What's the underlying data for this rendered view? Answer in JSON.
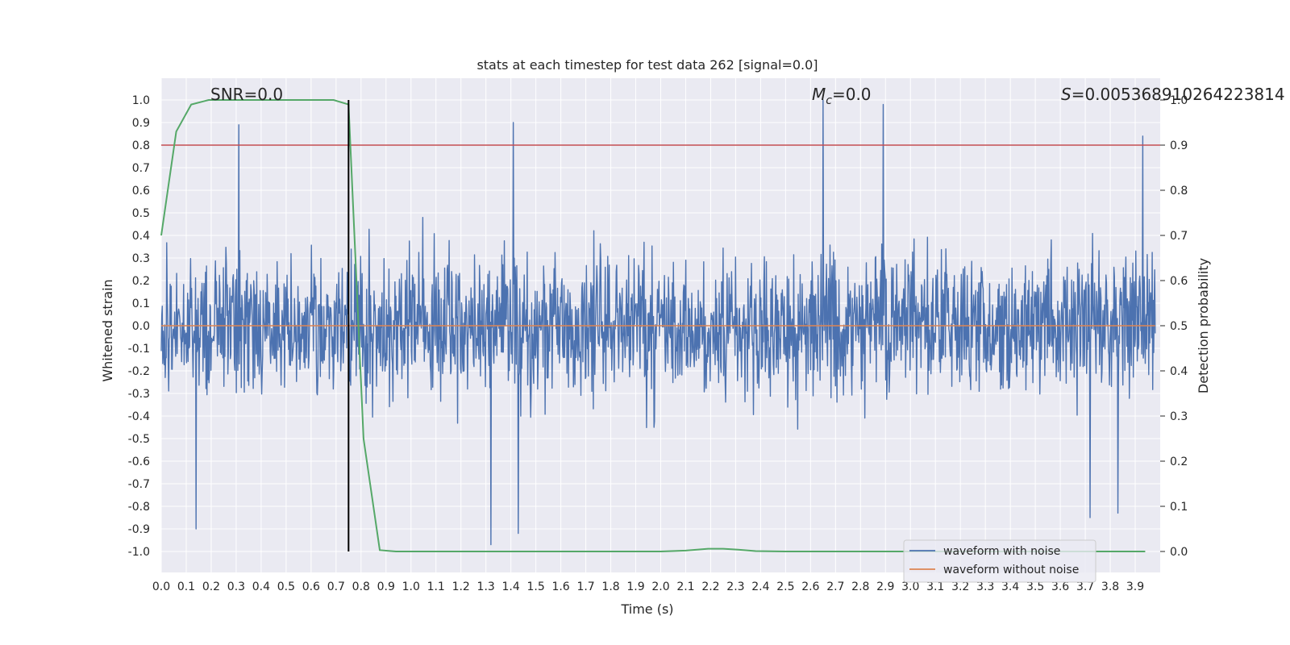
{
  "chart_data": {
    "type": "line",
    "title": "stats at each timestep for test data 262 [signal=0.0]",
    "xlabel": "Time (s)",
    "ylabel": "Whitened strain",
    "ylabel_right": "Detection probability",
    "xlim": [
      0.0,
      4.0
    ],
    "ylim": [
      -1.1,
      1.1
    ],
    "ylim_right": [
      -0.05,
      1.05
    ],
    "x_ticks": [
      "0.0",
      "0.1",
      "0.2",
      "0.3",
      "0.4",
      "0.5",
      "0.6",
      "0.7",
      "0.8",
      "0.9",
      "1.0",
      "1.1",
      "1.2",
      "1.3",
      "1.4",
      "1.5",
      "1.6",
      "1.7",
      "1.8",
      "1.9",
      "2.0",
      "2.1",
      "2.2",
      "2.3",
      "2.4",
      "2.5",
      "2.6",
      "2.7",
      "2.8",
      "2.9",
      "3.0",
      "3.1",
      "3.2",
      "3.3",
      "3.4",
      "3.5",
      "3.6",
      "3.7",
      "3.8",
      "3.9"
    ],
    "y_ticks": [
      "1.0",
      "0.9",
      "0.8",
      "0.7",
      "0.6",
      "0.5",
      "0.4",
      "0.3",
      "0.2",
      "0.1",
      "0.0",
      "-0.1",
      "-0.2",
      "-0.3",
      "-0.4",
      "-0.5",
      "-0.6",
      "-0.7",
      "-0.8",
      "-0.9",
      "-1.0"
    ],
    "y_ticks_right": [
      "1.0",
      "0.9",
      "0.8",
      "0.7",
      "0.6",
      "0.5",
      "0.4",
      "0.3",
      "0.2",
      "0.1",
      "0.0"
    ],
    "annotations": {
      "snr": "SNR=0.0",
      "mc_symbol": "M",
      "mc_sub": "c",
      "mc_value": "=0.0",
      "s_symbol": "S",
      "s_value": "=0.005368910264223814"
    },
    "grid": true,
    "legend_position": "lower-right",
    "series": [
      {
        "name": "waveform with noise",
        "color": "#4c72b0",
        "description_range": [
          -1.0,
          1.0
        ],
        "notable_peaks": [
          [
            0.31,
            0.89
          ],
          [
            1.41,
            0.9
          ],
          [
            2.65,
            1.0
          ],
          [
            2.89,
            0.98
          ],
          [
            3.93,
            0.84
          ]
        ],
        "notable_troughs": [
          [
            0.14,
            -0.9
          ],
          [
            1.32,
            -0.97
          ],
          [
            1.43,
            -0.92
          ],
          [
            3.72,
            -0.85
          ],
          [
            3.83,
            -0.83
          ]
        ]
      },
      {
        "name": "waveform without noise",
        "color": "#dd8452",
        "x": [
          0.0,
          3.98
        ],
        "values": [
          0.0,
          0.0
        ]
      },
      {
        "name": "",
        "axis": "right",
        "color": "#55a868",
        "x": [
          0.0,
          0.06,
          0.12,
          0.19,
          0.25,
          0.31,
          0.38,
          0.44,
          0.5,
          0.56,
          0.62,
          0.69,
          0.75,
          0.81,
          0.875,
          0.94,
          1.0,
          1.5,
          2.0,
          2.1,
          2.19,
          2.25,
          2.31,
          2.38,
          2.5,
          3.0,
          3.5,
          3.94
        ],
        "values": [
          0.7,
          0.93,
          0.99,
          1.0,
          1.0,
          1.0,
          1.0,
          1.0,
          1.0,
          1.0,
          1.0,
          1.0,
          0.99,
          0.25,
          0.003,
          0.0,
          0.0,
          0.0,
          0.0,
          0.002,
          0.006,
          0.006,
          0.004,
          0.001,
          0.0,
          0.0,
          0.0,
          0.0
        ]
      }
    ],
    "threshold": {
      "axis": "right",
      "value": 0.9,
      "color": "#c44e52"
    },
    "marker_line": {
      "x": 0.75,
      "color": "#000000",
      "y_range": [
        -1.0,
        1.0
      ]
    }
  }
}
